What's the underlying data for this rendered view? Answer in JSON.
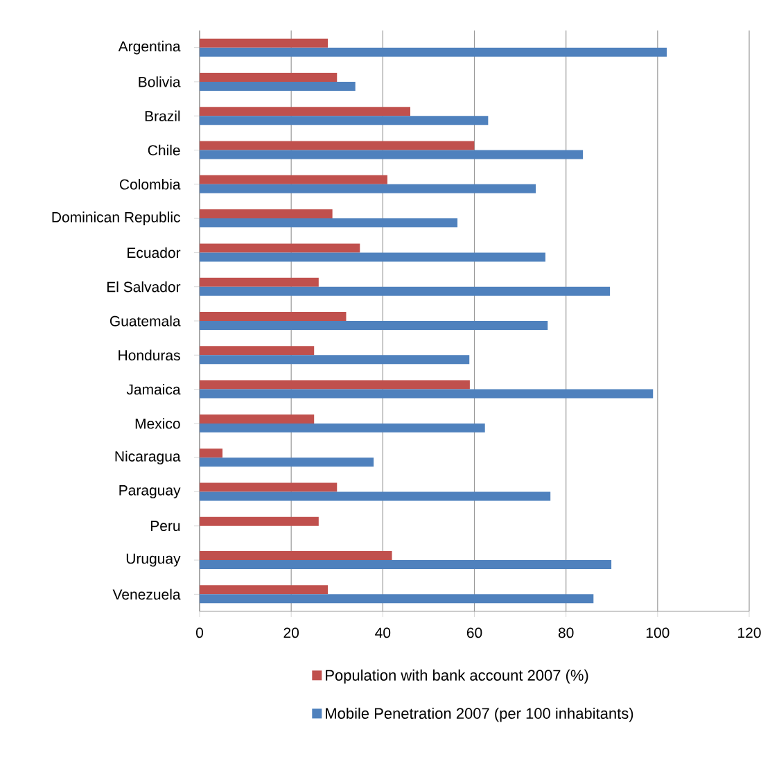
{
  "chart_data": {
    "type": "bar",
    "orientation": "horizontal",
    "categories": [
      "Argentina",
      "Bolivia",
      "Brazil",
      "Chile",
      "Colombia",
      "Dominican Republic",
      "Ecuador",
      "El Salvador",
      "Guatemala",
      "Honduras",
      "Jamaica",
      "Mexico",
      "Nicaragua",
      "Paraguay",
      "Peru",
      "Uruguay",
      "Venezuela"
    ],
    "series": [
      {
        "name": "Population with  bank account 2007 (%)",
        "color": "#c0504d",
        "values": [
          28,
          30,
          46,
          60,
          41,
          29,
          35,
          26,
          32,
          25,
          59,
          25,
          5,
          30,
          26,
          42,
          28
        ]
      },
      {
        "name": "Mobile Penetration 2007 (per 100 inhabitants)",
        "color": "#4f81bd",
        "values": [
          102,
          34,
          63,
          83.7,
          73.4,
          56.3,
          75.5,
          89.6,
          76,
          58.9,
          99,
          62.3,
          38,
          76.6,
          null,
          89.9,
          86
        ]
      }
    ],
    "xlim": [
      0,
      120
    ],
    "xticks": [
      0,
      20,
      40,
      60,
      80,
      100,
      120
    ],
    "grid": "x",
    "legend": "bottom"
  }
}
